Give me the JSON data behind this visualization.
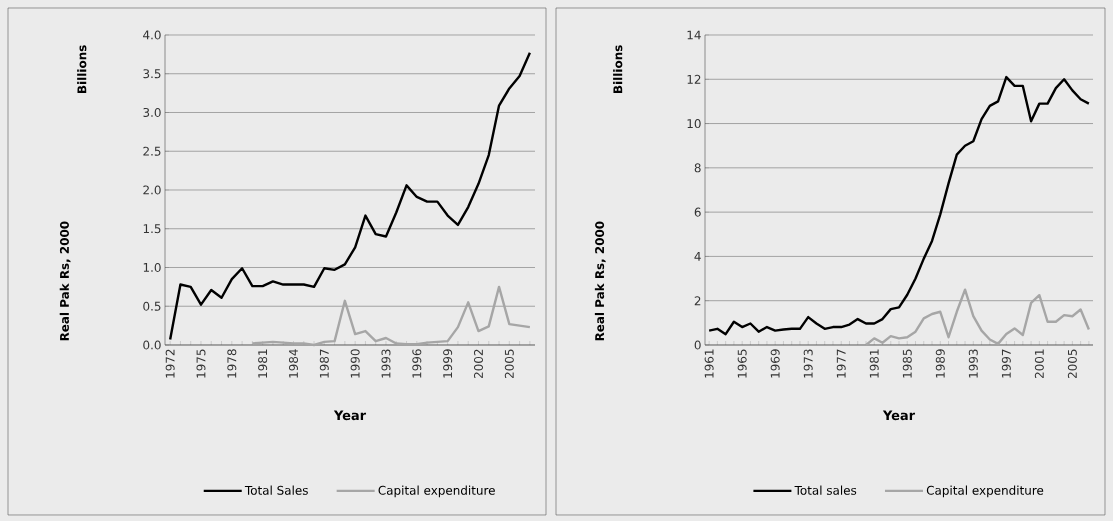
{
  "chart_data": [
    {
      "type": "line",
      "xlabel": "Year",
      "ylabel": "Real Pak Rs, 2000",
      "annotations": [
        "Billions"
      ],
      "categories": [
        "1972",
        null,
        null,
        "1975",
        null,
        null,
        "1978",
        null,
        null,
        "1981",
        null,
        null,
        "1984",
        null,
        null,
        "1987",
        null,
        null,
        "1990",
        null,
        null,
        "1993",
        null,
        null,
        "1996",
        null,
        null,
        "1999",
        null,
        null,
        "2002",
        null,
        null,
        "2005",
        null,
        null
      ],
      "series": [
        {
          "name": "Total Sales",
          "color": "#000000",
          "values": [
            0.07,
            0.78,
            0.75,
            0.52,
            0.71,
            0.61,
            0.85,
            0.99,
            0.76,
            0.76,
            0.82,
            0.78,
            0.78,
            0.78,
            0.75,
            0.99,
            0.97,
            1.04,
            1.26,
            1.67,
            1.43,
            1.4,
            1.71,
            2.06,
            1.91,
            1.85,
            1.85,
            1.67,
            1.55,
            1.78,
            2.08,
            2.45,
            3.09,
            3.31,
            3.47,
            3.77
          ]
        },
        {
          "name": "Capital expenditure",
          "color": "#a6a6a6",
          "values": [
            null,
            null,
            null,
            null,
            null,
            null,
            null,
            null,
            0.02,
            0.03,
            0.04,
            0.03,
            0.02,
            0.02,
            0.0,
            0.04,
            0.05,
            0.57,
            0.14,
            0.18,
            0.05,
            0.09,
            0.02,
            0.01,
            0.01,
            0.03,
            0.04,
            0.05,
            0.23,
            0.55,
            0.18,
            0.24,
            0.75,
            0.27,
            0.25,
            0.23
          ]
        }
      ],
      "ylim": [
        0,
        4
      ],
      "yticks": [
        {
          "value": 0,
          "label": "0.0"
        },
        {
          "value": 0.5,
          "label": "0.5"
        },
        {
          "value": 1,
          "label": "1.0"
        },
        {
          "value": 1.5,
          "label": "1.5"
        },
        {
          "value": 2,
          "label": "2.0"
        },
        {
          "value": 2.5,
          "label": "2.5"
        },
        {
          "value": 3,
          "label": "3.0"
        },
        {
          "value": 3.5,
          "label": "3.5"
        },
        {
          "value": 4,
          "label": "4.0"
        }
      ],
      "grid": "y",
      "legend": "bottom",
      "marker": "none",
      "line_style": "solid"
    },
    {
      "type": "line",
      "xlabel": "Year",
      "ylabel": "Real Pak Rs, 2000",
      "annotations": [
        "Billions"
      ],
      "categories": [
        "1961",
        null,
        null,
        null,
        "1965",
        null,
        null,
        null,
        "1969",
        null,
        null,
        null,
        "1973",
        null,
        null,
        null,
        "1977",
        null,
        null,
        null,
        "1981",
        null,
        null,
        null,
        "1985",
        null,
        null,
        null,
        "1989",
        null,
        null,
        null,
        "1993",
        null,
        null,
        null,
        "1997",
        null,
        null,
        null,
        "2001",
        null,
        null,
        null,
        "2005",
        null,
        null
      ],
      "series": [
        {
          "name": "Total sales",
          "color": "#000000",
          "values": [
            0.65,
            0.73,
            0.49,
            1.05,
            0.81,
            0.97,
            0.6,
            0.81,
            0.65,
            0.7,
            0.73,
            0.73,
            1.26,
            0.97,
            0.73,
            0.81,
            0.81,
            0.92,
            1.17,
            0.97,
            0.97,
            1.17,
            1.62,
            1.7,
            2.27,
            3.0,
            3.9,
            4.7,
            5.9,
            7.3,
            8.6,
            9.0,
            9.2,
            10.2,
            10.8,
            11.0,
            12.1,
            11.7,
            11.7,
            10.1,
            10.9,
            10.9,
            11.6,
            12.0,
            11.5,
            11.1,
            10.9
          ]
        },
        {
          "name": "Capital expenditure",
          "color": "#a6a6a6",
          "values": [
            null,
            null,
            null,
            null,
            null,
            null,
            null,
            null,
            null,
            null,
            null,
            null,
            null,
            null,
            null,
            null,
            null,
            null,
            null,
            0.0,
            0.3,
            0.1,
            0.4,
            0.3,
            0.35,
            0.6,
            1.2,
            1.4,
            1.5,
            0.35,
            1.5,
            2.5,
            1.3,
            0.65,
            0.25,
            0.05,
            0.5,
            0.75,
            0.45,
            1.9,
            2.25,
            1.05,
            1.05,
            1.35,
            1.3,
            1.6,
            0.7
          ]
        }
      ],
      "ylim": [
        0,
        14
      ],
      "yticks": [
        0,
        2,
        4,
        6,
        8,
        10,
        12,
        14
      ],
      "grid": "y",
      "legend": "bottom",
      "marker": "none",
      "line_style": "solid"
    }
  ]
}
